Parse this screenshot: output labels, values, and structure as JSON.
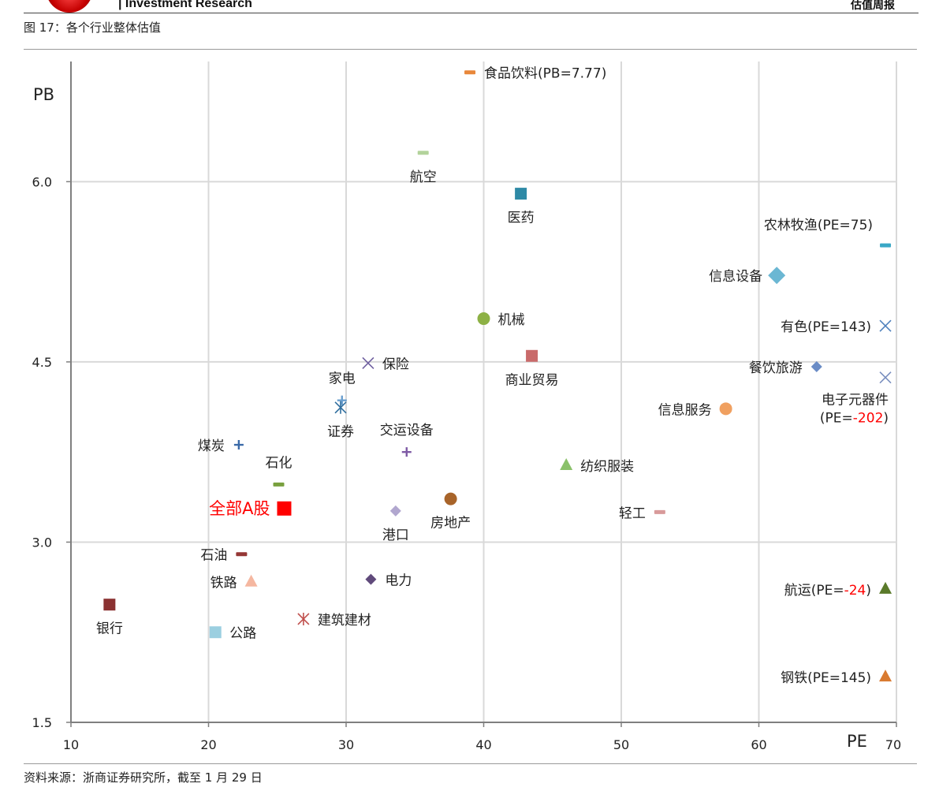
{
  "header": {
    "brand": "| Investment Research",
    "report_name": "估值周报"
  },
  "figure_caption": "图 17：各个行业整体估值",
  "source_note": "资料来源：浙商证券研究所，截至 1 月 29 日",
  "chart_data": {
    "type": "scatter",
    "title": "",
    "xlabel": "PE",
    "ylabel": "PB",
    "xlim": [
      10,
      70
    ],
    "ylim": [
      1.5,
      7.0
    ],
    "x_ticks": [
      "10",
      "20",
      "30",
      "40",
      "50",
      "60",
      "70"
    ],
    "y_ticks": [
      "1.5",
      "3.0",
      "4.5",
      "6.0"
    ],
    "x_tick_values": [
      10,
      20,
      30,
      40,
      50,
      60,
      70
    ],
    "y_tick_values": [
      1.5,
      3.0,
      4.5,
      6.0
    ],
    "grid": true,
    "highlight_color": "#ff0000",
    "points": [
      {
        "label": "食品饮料(PB=7.77)",
        "x": 39.0,
        "y": 6.91,
        "marker": "dash",
        "color": "#e8873a",
        "label_pos": "right"
      },
      {
        "label": "航空",
        "x": 35.6,
        "y": 6.24,
        "marker": "dash",
        "color": "#b3d39b",
        "label_pos": "below"
      },
      {
        "label": "医药",
        "x": 42.7,
        "y": 5.9,
        "marker": "square",
        "color": "#2e8aa6",
        "label_pos": "below"
      },
      {
        "label": "农林牧渔(PE=75)",
        "x": 69.2,
        "y": 5.47,
        "marker": "dash",
        "color": "#3aa8c6",
        "label_pos": "above-left"
      },
      {
        "label": "信息设备",
        "x": 61.3,
        "y": 5.22,
        "marker": "diamond",
        "color": "#6bb7d3",
        "label_pos": "left"
      },
      {
        "label": "机械",
        "x": 40.0,
        "y": 4.86,
        "marker": "circle",
        "color": "#8db145",
        "label_pos": "right"
      },
      {
        "label": "有色(PE=143)",
        "x": 69.2,
        "y": 4.8,
        "marker": "x",
        "color": "#4f81bd",
        "label_pos": "left"
      },
      {
        "label": "商业贸易",
        "x": 43.5,
        "y": 4.55,
        "marker": "square",
        "color": "#c96a6a",
        "label_pos": "below"
      },
      {
        "label": "保险",
        "x": 31.6,
        "y": 4.49,
        "marker": "x",
        "color": "#7060a0",
        "label_pos": "right"
      },
      {
        "label": "餐饮旅游",
        "x": 64.2,
        "y": 4.46,
        "marker": "diamond",
        "color": "#6a8cc6",
        "label_pos": "left"
      },
      {
        "label": "电子元器件",
        "label_note": "(PE=",
        "label_value": "-202",
        "label_close": ")",
        "x": 69.2,
        "y": 4.37,
        "marker": "x",
        "color": "#7a8fbf",
        "label_pos": "below-left"
      },
      {
        "label": "家电",
        "x": 29.7,
        "y": 4.18,
        "marker": "plus",
        "color": "#6a9fcf",
        "label_pos": "above"
      },
      {
        "label": "证券",
        "x": 29.6,
        "y": 4.12,
        "marker": "star",
        "color": "#2f6e9e",
        "label_pos": "below"
      },
      {
        "label": "信息服务",
        "x": 57.6,
        "y": 4.11,
        "marker": "circle",
        "color": "#f0a060",
        "label_pos": "left"
      },
      {
        "label": "煤炭",
        "x": 22.2,
        "y": 3.81,
        "marker": "plus",
        "color": "#3a6aa8",
        "label_pos": "left"
      },
      {
        "label": "交运设备",
        "x": 34.4,
        "y": 3.75,
        "marker": "plus",
        "color": "#7e5aa5",
        "label_pos": "above"
      },
      {
        "label": "纺织服装",
        "x": 46.0,
        "y": 3.64,
        "marker": "triangle",
        "color": "#8ac16a",
        "label_pos": "right"
      },
      {
        "label": "石化",
        "x": 25.1,
        "y": 3.48,
        "marker": "dash",
        "color": "#79a03e",
        "label_pos": "above"
      },
      {
        "label": "房地产",
        "x": 37.6,
        "y": 3.36,
        "marker": "circle",
        "color": "#a8642a",
        "label_pos": "below"
      },
      {
        "label": "全部A股",
        "x": 25.5,
        "y": 3.28,
        "marker": "square",
        "color": "#ff0000",
        "label_pos": "left",
        "emphasis": true
      },
      {
        "label": "港口",
        "x": 33.6,
        "y": 3.26,
        "marker": "diamond",
        "color": "#b1a7cf",
        "label_pos": "below"
      },
      {
        "label": "轻工",
        "x": 52.8,
        "y": 3.25,
        "marker": "dash",
        "color": "#d89a9a",
        "label_pos": "left"
      },
      {
        "label": "石油",
        "x": 22.4,
        "y": 2.9,
        "marker": "dash",
        "color": "#953735",
        "label_pos": "left"
      },
      {
        "label": "铁路",
        "x": 23.1,
        "y": 2.67,
        "marker": "triangle",
        "color": "#f5b7a0",
        "label_pos": "left"
      },
      {
        "label": "电力",
        "x": 31.8,
        "y": 2.69,
        "marker": "diamond",
        "color": "#604a7b",
        "label_pos": "right"
      },
      {
        "label": "航运",
        "label_note": "(PE=",
        "label_value": "-24",
        "label_close": ")",
        "x": 69.2,
        "y": 2.61,
        "marker": "triangle",
        "color": "#5a7a2a",
        "label_pos": "left"
      },
      {
        "label": "银行",
        "x": 12.8,
        "y": 2.48,
        "marker": "square",
        "color": "#8b3232",
        "label_pos": "below"
      },
      {
        "label": "建筑建材",
        "x": 26.9,
        "y": 2.36,
        "marker": "star",
        "color": "#c0504d",
        "label_pos": "right"
      },
      {
        "label": "公路",
        "x": 20.5,
        "y": 2.25,
        "marker": "square",
        "color": "#9bcfe0",
        "label_pos": "right"
      },
      {
        "label": "钢铁(PE=145)",
        "x": 69.2,
        "y": 1.88,
        "marker": "triangle",
        "color": "#d97a30",
        "label_pos": "left"
      }
    ]
  }
}
